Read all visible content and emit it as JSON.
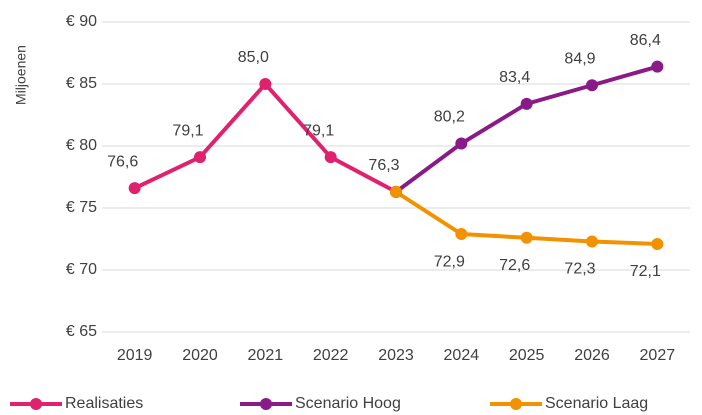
{
  "chart_data": {
    "type": "line",
    "y_label": "Miljoenen",
    "categories": [
      "2019",
      "2020",
      "2021",
      "2022",
      "2023",
      "2024",
      "2025",
      "2026",
      "2027"
    ],
    "series": [
      {
        "name": "Realisaties",
        "color": "#e0226e",
        "values": [
          76.6,
          79.1,
          85.0,
          79.1,
          76.3,
          null,
          null,
          null,
          null
        ],
        "value_labels": [
          "76,6",
          "79,1",
          "85,0",
          "79,1",
          "76,3",
          null,
          null,
          null,
          null
        ]
      },
      {
        "name": "Scenario Hoog",
        "color": "#8b1a89",
        "values": [
          null,
          null,
          null,
          null,
          76.3,
          80.2,
          83.4,
          84.9,
          86.4
        ],
        "value_labels": [
          null,
          null,
          null,
          null,
          null,
          "80,2",
          "83,4",
          "84,9",
          "86,4"
        ]
      },
      {
        "name": "Scenario Laag",
        "color": "#f39200",
        "values": [
          null,
          null,
          null,
          null,
          76.3,
          72.9,
          72.6,
          72.3,
          72.1
        ],
        "value_labels": [
          null,
          null,
          null,
          null,
          null,
          "72,9",
          "72,6",
          "72,3",
          "72,1"
        ]
      }
    ],
    "ylim": [
      65,
      90
    ],
    "yticks": [
      {
        "value": 65,
        "label": "€ 65"
      },
      {
        "value": 70,
        "label": "€ 70"
      },
      {
        "value": 75,
        "label": "€ 75"
      },
      {
        "value": 80,
        "label": "€ 80"
      },
      {
        "value": 85,
        "label": "€ 85"
      },
      {
        "value": 90,
        "label": "€ 90"
      }
    ],
    "grid": true,
    "legend": "bottom"
  }
}
